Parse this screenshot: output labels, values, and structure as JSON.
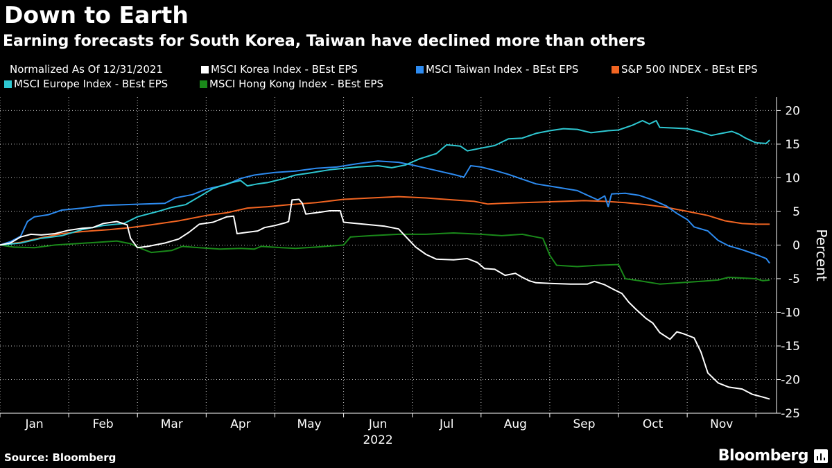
{
  "header": {
    "title": "Down to Earth",
    "subtitle": "Earning forecasts for South Korea, Taiwan have declined more than others"
  },
  "footer": {
    "source": "Source: Bloomberg",
    "brand": "Bloomberg"
  },
  "chart_data": {
    "type": "line",
    "note": "Normalized As Of 12/31/2021",
    "xlabel": "2022",
    "ylabel": "Percent",
    "x_ticks": [
      "Jan",
      "Feb",
      "Mar",
      "Apr",
      "May",
      "Jun",
      "Jul",
      "Aug",
      "Sep",
      "Oct",
      "Nov"
    ],
    "ylim": [
      -25,
      22
    ],
    "y_ticks": [
      20,
      15,
      10,
      5,
      0,
      -5,
      -10,
      -15,
      -20,
      -25
    ],
    "x_unit": "months since Jan 1, 2022",
    "xlim": [
      0,
      11.3
    ],
    "series": [
      {
        "name": "MSCI Korea Index - BEst EPS",
        "color": "#ffffff",
        "points": [
          [
            0,
            0
          ],
          [
            0.15,
            0.3
          ],
          [
            0.3,
            1.2
          ],
          [
            0.45,
            1.6
          ],
          [
            0.6,
            1.5
          ],
          [
            0.8,
            1.7
          ],
          [
            1.0,
            2.2
          ],
          [
            1.2,
            2.5
          ],
          [
            1.35,
            2.6
          ],
          [
            1.5,
            3.2
          ],
          [
            1.7,
            3.5
          ],
          [
            1.85,
            3.0
          ],
          [
            1.9,
            1.0
          ],
          [
            2.0,
            -0.4
          ],
          [
            2.15,
            -0.2
          ],
          [
            2.4,
            0.3
          ],
          [
            2.6,
            0.9
          ],
          [
            2.75,
            1.9
          ],
          [
            2.9,
            3.1
          ],
          [
            3.1,
            3.4
          ],
          [
            3.3,
            4.2
          ],
          [
            3.4,
            4.3
          ],
          [
            3.45,
            1.7
          ],
          [
            3.6,
            1.9
          ],
          [
            3.75,
            2.1
          ],
          [
            3.85,
            2.6
          ],
          [
            4.0,
            2.9
          ],
          [
            4.15,
            3.3
          ],
          [
            4.2,
            3.5
          ],
          [
            4.25,
            6.7
          ],
          [
            4.35,
            6.8
          ],
          [
            4.4,
            6.2
          ],
          [
            4.45,
            4.6
          ],
          [
            4.6,
            4.8
          ],
          [
            4.8,
            5.1
          ],
          [
            4.95,
            5.1
          ],
          [
            5.0,
            3.4
          ],
          [
            5.3,
            3.1
          ],
          [
            5.6,
            2.8
          ],
          [
            5.8,
            2.4
          ],
          [
            5.9,
            1.3
          ],
          [
            6.05,
            -0.3
          ],
          [
            6.2,
            -1.4
          ],
          [
            6.35,
            -2.1
          ],
          [
            6.6,
            -2.2
          ],
          [
            6.8,
            -2.0
          ],
          [
            6.95,
            -2.6
          ],
          [
            7.05,
            -3.5
          ],
          [
            7.2,
            -3.6
          ],
          [
            7.35,
            -4.5
          ],
          [
            7.5,
            -4.2
          ],
          [
            7.6,
            -4.8
          ],
          [
            7.7,
            -5.3
          ],
          [
            7.8,
            -5.6
          ],
          [
            8.0,
            -5.7
          ],
          [
            8.3,
            -5.8
          ],
          [
            8.55,
            -5.8
          ],
          [
            8.65,
            -5.4
          ],
          [
            8.8,
            -5.9
          ],
          [
            8.95,
            -6.7
          ],
          [
            9.05,
            -7.2
          ],
          [
            9.15,
            -8.5
          ],
          [
            9.25,
            -9.5
          ],
          [
            9.4,
            -10.9
          ],
          [
            9.5,
            -11.6
          ],
          [
            9.6,
            -13.0
          ],
          [
            9.75,
            -14.0
          ],
          [
            9.85,
            -12.9
          ],
          [
            9.95,
            -13.2
          ],
          [
            10.1,
            -13.8
          ],
          [
            10.2,
            -15.9
          ],
          [
            10.3,
            -19.0
          ],
          [
            10.45,
            -20.5
          ],
          [
            10.6,
            -21.1
          ],
          [
            10.8,
            -21.4
          ],
          [
            10.95,
            -22.2
          ],
          [
            11.1,
            -22.6
          ],
          [
            11.2,
            -22.9
          ]
        ]
      },
      {
        "name": "MSCI Taiwan Index - BEst EPS",
        "color": "#2d8bf0",
        "points": [
          [
            0,
            0
          ],
          [
            0.15,
            0.5
          ],
          [
            0.3,
            1.3
          ],
          [
            0.4,
            3.5
          ],
          [
            0.5,
            4.2
          ],
          [
            0.7,
            4.5
          ],
          [
            0.9,
            5.2
          ],
          [
            1.2,
            5.5
          ],
          [
            1.5,
            5.9
          ],
          [
            1.8,
            6.0
          ],
          [
            2.1,
            6.1
          ],
          [
            2.4,
            6.2
          ],
          [
            2.55,
            7.0
          ],
          [
            2.8,
            7.5
          ],
          [
            3.0,
            8.3
          ],
          [
            3.3,
            9.0
          ],
          [
            3.5,
            9.9
          ],
          [
            3.7,
            10.4
          ],
          [
            4.0,
            10.8
          ],
          [
            4.3,
            11.0
          ],
          [
            4.6,
            11.4
          ],
          [
            4.9,
            11.6
          ],
          [
            5.2,
            12.1
          ],
          [
            5.5,
            12.5
          ],
          [
            5.8,
            12.3
          ],
          [
            6.0,
            11.9
          ],
          [
            6.3,
            11.2
          ],
          [
            6.6,
            10.5
          ],
          [
            6.75,
            10.1
          ],
          [
            6.85,
            11.8
          ],
          [
            7.0,
            11.6
          ],
          [
            7.2,
            11.1
          ],
          [
            7.4,
            10.5
          ],
          [
            7.6,
            9.8
          ],
          [
            7.8,
            9.1
          ],
          [
            8.1,
            8.6
          ],
          [
            8.4,
            8.1
          ],
          [
            8.55,
            7.4
          ],
          [
            8.7,
            6.7
          ],
          [
            8.8,
            7.3
          ],
          [
            8.85,
            5.7
          ],
          [
            8.9,
            7.6
          ],
          [
            9.1,
            7.7
          ],
          [
            9.3,
            7.4
          ],
          [
            9.5,
            6.7
          ],
          [
            9.7,
            5.8
          ],
          [
            9.85,
            4.7
          ],
          [
            10.0,
            3.8
          ],
          [
            10.1,
            2.7
          ],
          [
            10.3,
            2.1
          ],
          [
            10.45,
            0.7
          ],
          [
            10.6,
            -0.1
          ],
          [
            10.8,
            -0.7
          ],
          [
            11.0,
            -1.4
          ],
          [
            11.15,
            -2.0
          ],
          [
            11.2,
            -2.7
          ]
        ]
      },
      {
        "name": "S&P 500 INDEX - BEst EPS",
        "color": "#f26522",
        "points": [
          [
            0,
            0
          ],
          [
            0.3,
            0.4
          ],
          [
            0.6,
            1.1
          ],
          [
            0.9,
            1.7
          ],
          [
            1.2,
            2.0
          ],
          [
            1.6,
            2.3
          ],
          [
            1.9,
            2.6
          ],
          [
            2.2,
            3.0
          ],
          [
            2.6,
            3.6
          ],
          [
            3.0,
            4.4
          ],
          [
            3.3,
            4.8
          ],
          [
            3.6,
            5.5
          ],
          [
            3.9,
            5.7
          ],
          [
            4.2,
            6.0
          ],
          [
            4.6,
            6.3
          ],
          [
            5.0,
            6.8
          ],
          [
            5.4,
            7.0
          ],
          [
            5.8,
            7.2
          ],
          [
            6.2,
            7.0
          ],
          [
            6.6,
            6.7
          ],
          [
            6.9,
            6.5
          ],
          [
            7.1,
            6.1
          ],
          [
            7.3,
            6.2
          ],
          [
            7.6,
            6.3
          ],
          [
            7.9,
            6.4
          ],
          [
            8.2,
            6.5
          ],
          [
            8.5,
            6.6
          ],
          [
            8.8,
            6.5
          ],
          [
            9.1,
            6.3
          ],
          [
            9.4,
            6.0
          ],
          [
            9.7,
            5.6
          ],
          [
            10.0,
            5.0
          ],
          [
            10.3,
            4.4
          ],
          [
            10.55,
            3.6
          ],
          [
            10.8,
            3.2
          ],
          [
            11.0,
            3.1
          ],
          [
            11.2,
            3.1
          ]
        ]
      },
      {
        "name": "MSCI Europe Index - BEst EPS",
        "color": "#2ec8d2",
        "points": [
          [
            0,
            0
          ],
          [
            0.3,
            0.3
          ],
          [
            0.6,
            1.0
          ],
          [
            0.9,
            1.4
          ],
          [
            1.2,
            2.3
          ],
          [
            1.5,
            2.9
          ],
          [
            1.8,
            3.2
          ],
          [
            2.0,
            4.2
          ],
          [
            2.3,
            5.0
          ],
          [
            2.5,
            5.6
          ],
          [
            2.7,
            6.0
          ],
          [
            2.9,
            7.2
          ],
          [
            3.1,
            8.4
          ],
          [
            3.3,
            9.1
          ],
          [
            3.5,
            9.6
          ],
          [
            3.6,
            8.8
          ],
          [
            3.75,
            9.1
          ],
          [
            3.9,
            9.3
          ],
          [
            4.1,
            9.8
          ],
          [
            4.3,
            10.4
          ],
          [
            4.5,
            10.7
          ],
          [
            4.8,
            11.2
          ],
          [
            5.2,
            11.6
          ],
          [
            5.5,
            11.8
          ],
          [
            5.7,
            11.5
          ],
          [
            5.9,
            11.9
          ],
          [
            6.1,
            12.8
          ],
          [
            6.35,
            13.6
          ],
          [
            6.5,
            14.9
          ],
          [
            6.7,
            14.7
          ],
          [
            6.8,
            14.0
          ],
          [
            7.0,
            14.4
          ],
          [
            7.2,
            14.8
          ],
          [
            7.4,
            15.8
          ],
          [
            7.6,
            15.9
          ],
          [
            7.8,
            16.6
          ],
          [
            8.0,
            17.0
          ],
          [
            8.2,
            17.3
          ],
          [
            8.4,
            17.2
          ],
          [
            8.6,
            16.7
          ],
          [
            8.85,
            17.0
          ],
          [
            9.0,
            17.1
          ],
          [
            9.2,
            17.8
          ],
          [
            9.35,
            18.5
          ],
          [
            9.45,
            18.0
          ],
          [
            9.55,
            18.5
          ],
          [
            9.6,
            17.5
          ],
          [
            9.8,
            17.4
          ],
          [
            10.0,
            17.3
          ],
          [
            10.2,
            16.8
          ],
          [
            10.35,
            16.3
          ],
          [
            10.5,
            16.6
          ],
          [
            10.65,
            16.9
          ],
          [
            10.75,
            16.5
          ],
          [
            10.85,
            15.9
          ],
          [
            11.0,
            15.2
          ],
          [
            11.15,
            15.1
          ],
          [
            11.2,
            15.6
          ]
        ]
      },
      {
        "name": "MSCI Hong Kong Index - BEst EPS",
        "color": "#1a8a1a",
        "points": [
          [
            0,
            0
          ],
          [
            0.2,
            -0.3
          ],
          [
            0.5,
            -0.4
          ],
          [
            0.8,
            0.0
          ],
          [
            1.1,
            0.2
          ],
          [
            1.4,
            0.4
          ],
          [
            1.7,
            0.6
          ],
          [
            1.9,
            0.2
          ],
          [
            2.05,
            -0.5
          ],
          [
            2.2,
            -1.1
          ],
          [
            2.4,
            -0.9
          ],
          [
            2.5,
            -0.8
          ],
          [
            2.65,
            -0.2
          ],
          [
            2.9,
            -0.4
          ],
          [
            3.2,
            -0.6
          ],
          [
            3.5,
            -0.5
          ],
          [
            3.7,
            -0.6
          ],
          [
            3.8,
            -0.2
          ],
          [
            4.1,
            -0.4
          ],
          [
            4.3,
            -0.5
          ],
          [
            4.6,
            -0.3
          ],
          [
            5.0,
            0.0
          ],
          [
            5.1,
            1.2
          ],
          [
            5.4,
            1.4
          ],
          [
            5.8,
            1.6
          ],
          [
            6.2,
            1.6
          ],
          [
            6.6,
            1.8
          ],
          [
            7.0,
            1.6
          ],
          [
            7.3,
            1.4
          ],
          [
            7.6,
            1.6
          ],
          [
            7.9,
            1.0
          ],
          [
            8.0,
            -1.5
          ],
          [
            8.1,
            -3.0
          ],
          [
            8.4,
            -3.2
          ],
          [
            8.7,
            -3.0
          ],
          [
            9.0,
            -2.9
          ],
          [
            9.1,
            -5.0
          ],
          [
            9.3,
            -5.3
          ],
          [
            9.6,
            -5.8
          ],
          [
            9.9,
            -5.6
          ],
          [
            10.2,
            -5.4
          ],
          [
            10.45,
            -5.2
          ],
          [
            10.6,
            -4.8
          ],
          [
            10.8,
            -4.9
          ],
          [
            11.0,
            -5.0
          ],
          [
            11.1,
            -5.3
          ],
          [
            11.2,
            -5.2
          ]
        ]
      }
    ]
  }
}
